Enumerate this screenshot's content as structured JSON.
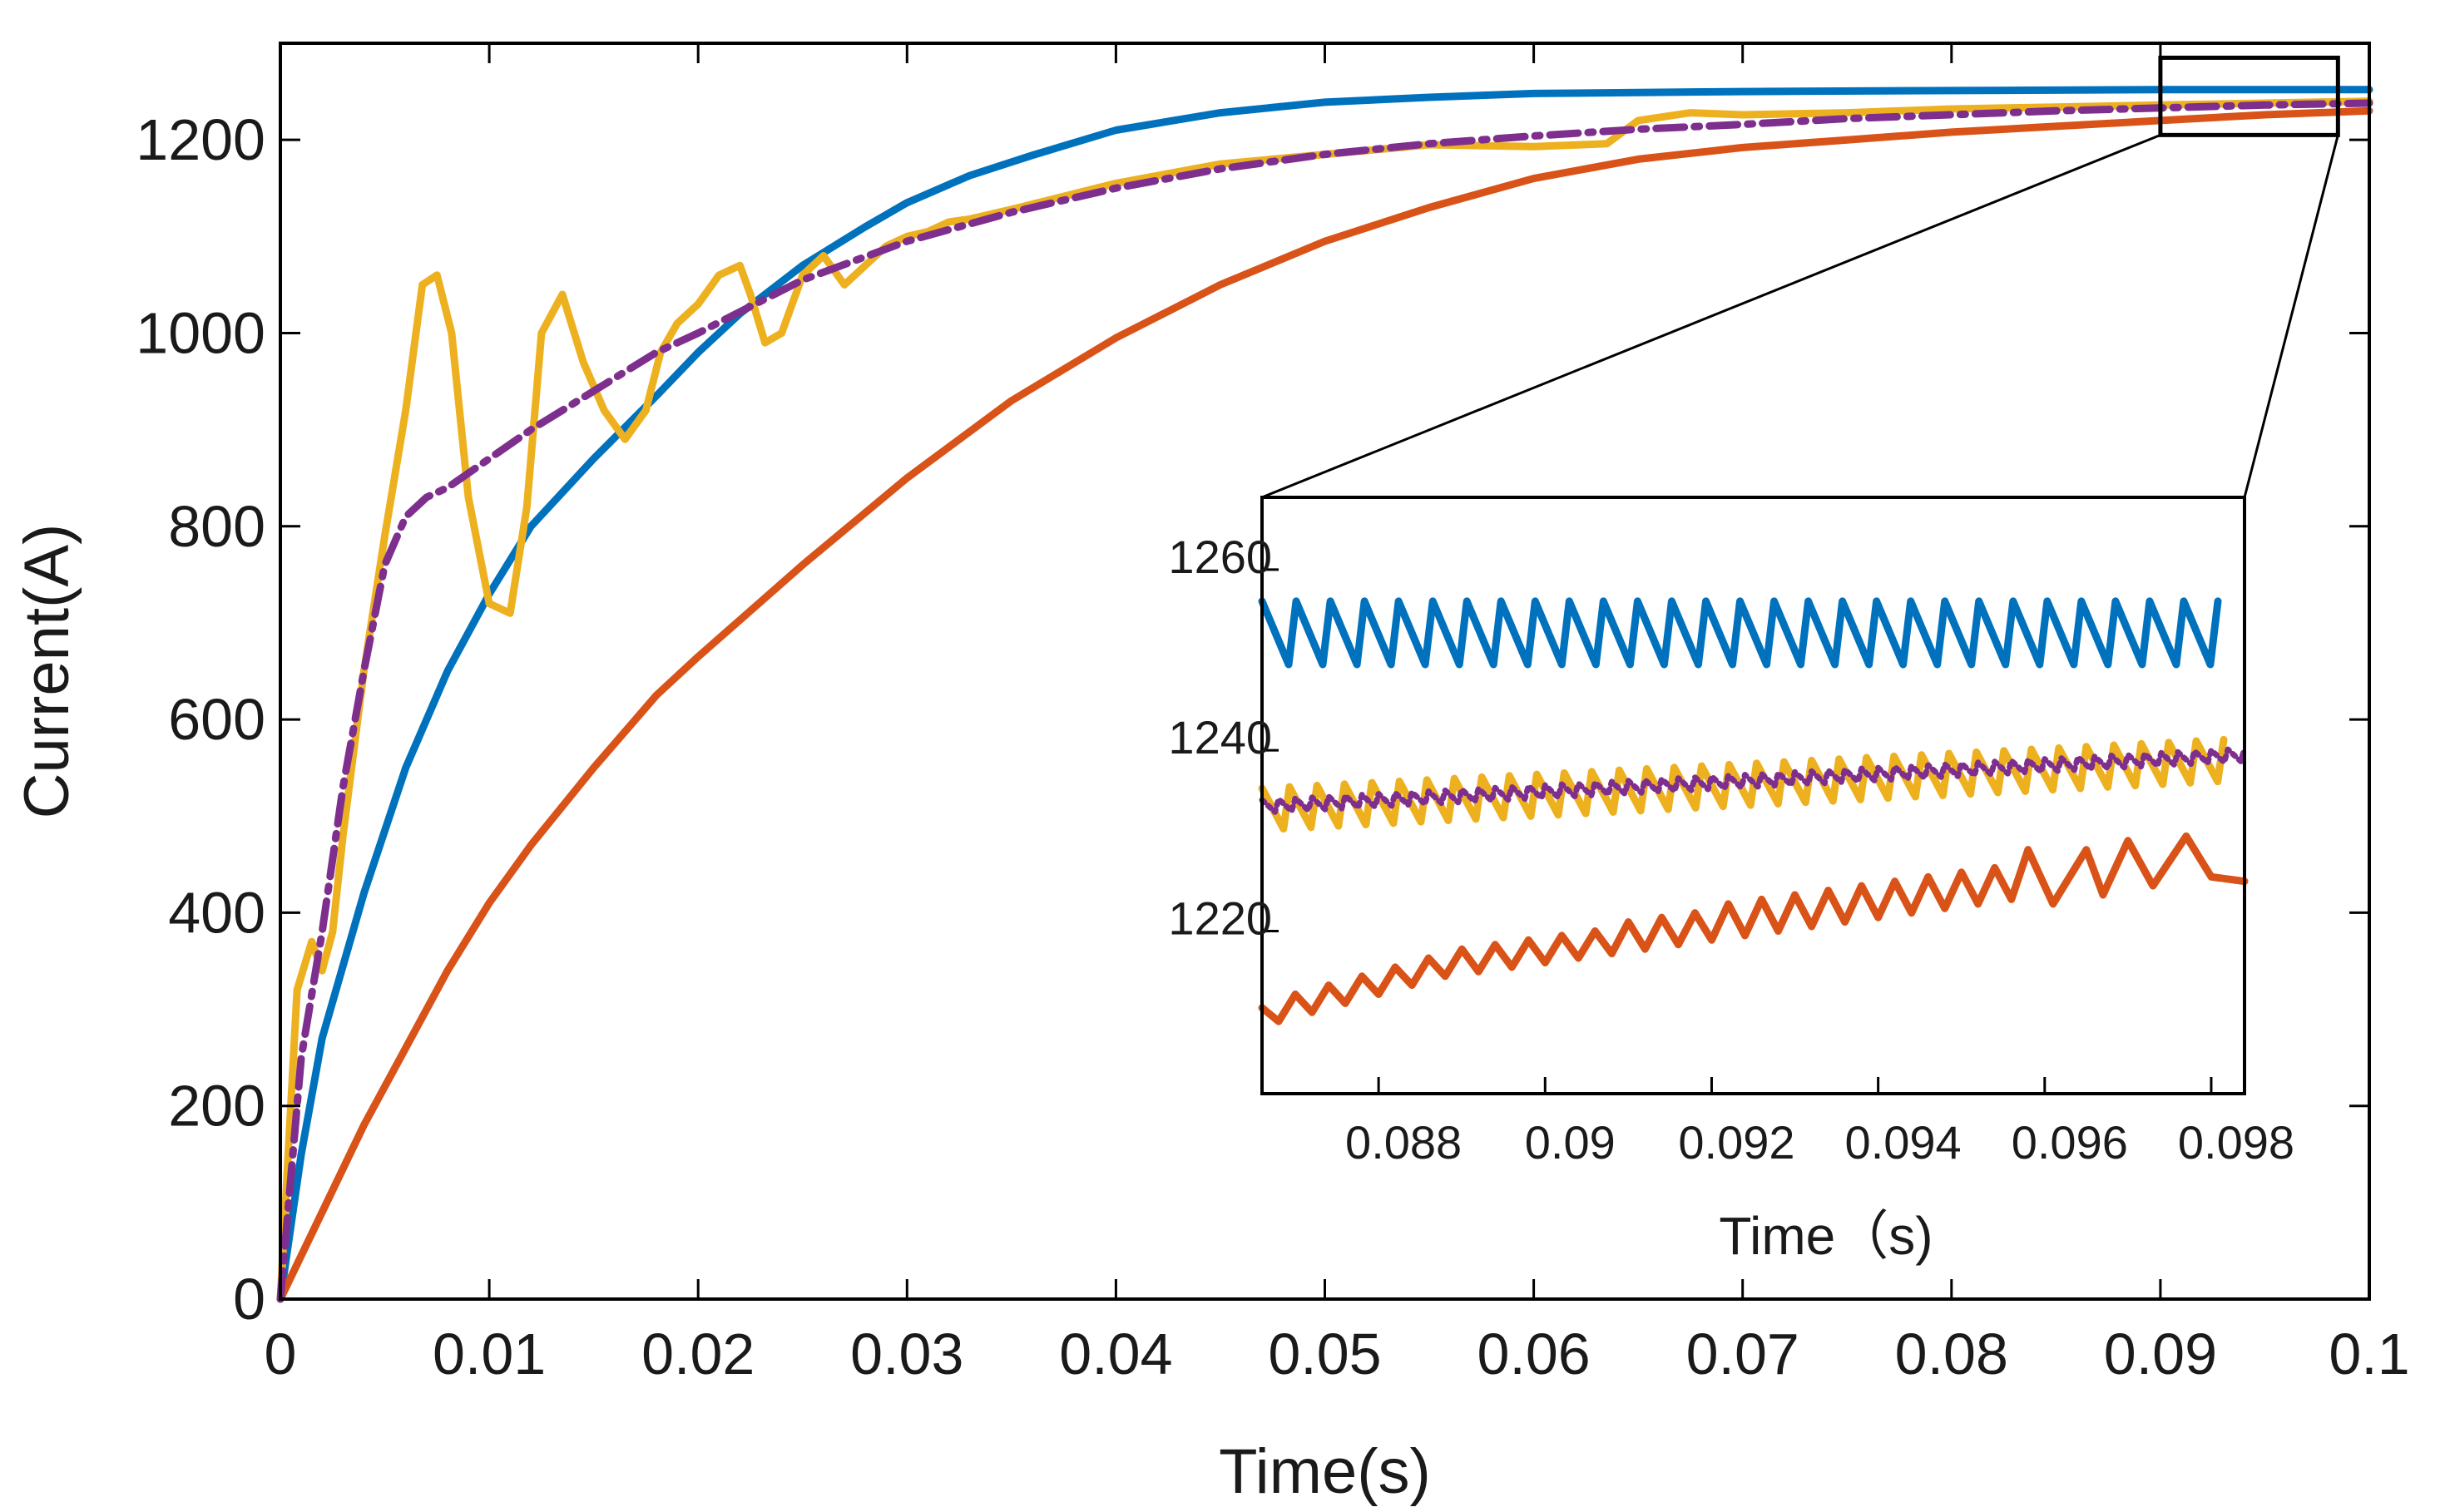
{
  "colors": {
    "series_blue": "#0072BD",
    "series_orange": "#D95319",
    "series_yellow": "#EDB120",
    "series_purple": "#7E2F8E",
    "axis": "#000000"
  },
  "chart_data": [
    {
      "id": "main",
      "type": "line",
      "xlabel": "Time(s)",
      "ylabel": "Current(A)",
      "xlim": [
        0,
        0.1
      ],
      "ylim": [
        0,
        1300
      ],
      "xticks": [
        0,
        0.01,
        0.02,
        0.03,
        0.04,
        0.05,
        0.06,
        0.07,
        0.08,
        0.09,
        0.1
      ],
      "xtick_labels": [
        "0",
        "0.01",
        "0.02",
        "0.03",
        "0.04",
        "0.05",
        "0.06",
        "0.07",
        "0.08",
        "0.09",
        "0.1"
      ],
      "yticks": [
        0,
        200,
        400,
        600,
        800,
        1000,
        1200
      ],
      "ytick_labels": [
        "0",
        "200",
        "400",
        "600",
        "800",
        "1000",
        "1200"
      ],
      "grid": false,
      "zoom_box": {
        "xlim": [
          0.09,
          0.0985
        ],
        "ylim": [
          1205,
          1285
        ]
      },
      "series": [
        {
          "name": "blue",
          "color": "#0072BD",
          "style": "solid",
          "x": [
            0,
            0.001,
            0.002,
            0.004,
            0.006,
            0.008,
            0.01,
            0.012,
            0.015,
            0.018,
            0.02,
            0.022,
            0.025,
            0.028,
            0.03,
            0.033,
            0.036,
            0.04,
            0.045,
            0.05,
            0.055,
            0.06,
            0.07,
            0.08,
            0.09,
            0.1
          ],
          "values": [
            0,
            150,
            270,
            420,
            550,
            650,
            730,
            800,
            870,
            935,
            980,
            1020,
            1070,
            1110,
            1135,
            1163,
            1184,
            1210,
            1228,
            1239,
            1244,
            1248,
            1250,
            1251,
            1252,
            1252
          ]
        },
        {
          "name": "orange",
          "color": "#D95319",
          "style": "solid",
          "x": [
            0,
            0.002,
            0.004,
            0.006,
            0.008,
            0.01,
            0.012,
            0.015,
            0.018,
            0.02,
            0.025,
            0.03,
            0.035,
            0.04,
            0.045,
            0.05,
            0.055,
            0.06,
            0.065,
            0.07,
            0.075,
            0.08,
            0.085,
            0.09,
            0.095,
            0.1
          ],
          "values": [
            0,
            90,
            180,
            260,
            340,
            410,
            470,
            550,
            625,
            665,
            760,
            850,
            930,
            995,
            1050,
            1095,
            1130,
            1160,
            1180,
            1192,
            1200,
            1208,
            1214,
            1220,
            1226,
            1230
          ]
        },
        {
          "name": "yellow",
          "color": "#EDB120",
          "style": "solid",
          "x": [
            0,
            0.0008,
            0.0015,
            0.002,
            0.0025,
            0.003,
            0.004,
            0.005,
            0.006,
            0.0068,
            0.0075,
            0.0082,
            0.009,
            0.01,
            0.011,
            0.0118,
            0.0125,
            0.0135,
            0.0145,
            0.0155,
            0.0165,
            0.0175,
            0.0182,
            0.019,
            0.02,
            0.021,
            0.022,
            0.0225,
            0.0232,
            0.024,
            0.025,
            0.026,
            0.027,
            0.028,
            0.029,
            0.03,
            0.031,
            0.032,
            0.033,
            0.035,
            0.04,
            0.045,
            0.05,
            0.055,
            0.06,
            0.0635,
            0.065,
            0.0675,
            0.07,
            0.075,
            0.08,
            0.085,
            0.09,
            0.095,
            0.1
          ],
          "values": [
            0,
            320,
            370,
            340,
            380,
            480,
            650,
            790,
            920,
            1050,
            1060,
            1000,
            830,
            720,
            710,
            820,
            1000,
            1040,
            970,
            920,
            890,
            920,
            980,
            1010,
            1030,
            1060,
            1070,
            1040,
            990,
            1000,
            1060,
            1080,
            1050,
            1070,
            1090,
            1100,
            1105,
            1115,
            1118,
            1128,
            1155,
            1175,
            1185,
            1195,
            1193,
            1196,
            1220,
            1228,
            1226,
            1228,
            1232,
            1234,
            1236,
            1238,
            1240
          ]
        },
        {
          "name": "purple",
          "color": "#7E2F8E",
          "style": "dashdot",
          "x": [
            0,
            0.001,
            0.002,
            0.003,
            0.004,
            0.005,
            0.006,
            0.007,
            0.008,
            0.01,
            0.012,
            0.015,
            0.018,
            0.02,
            0.025,
            0.03,
            0.035,
            0.04,
            0.045,
            0.05,
            0.055,
            0.06,
            0.065,
            0.07,
            0.075,
            0.08,
            0.085,
            0.09,
            0.095,
            0.1
          ],
          "values": [
            0,
            250,
            380,
            530,
            650,
            760,
            810,
            830,
            840,
            870,
            900,
            940,
            980,
            1000,
            1055,
            1095,
            1125,
            1150,
            1170,
            1185,
            1196,
            1204,
            1211,
            1216,
            1222,
            1226,
            1230,
            1233,
            1236,
            1238
          ]
        }
      ]
    },
    {
      "id": "inset",
      "type": "line",
      "xlabel": "Time（s)",
      "xlim": [
        0.0866,
        0.0984
      ],
      "ylim": [
        1202,
        1268
      ],
      "xticks": [
        0.088,
        0.09,
        0.092,
        0.094,
        0.096,
        0.098
      ],
      "xtick_labels": [
        "0.088",
        "0.09",
        "0.092",
        "0.094",
        "0.096",
        "0.098"
      ],
      "yticks": [
        1220,
        1240,
        1260
      ],
      "ytick_labels": [
        "1220",
        "1240",
        "1260"
      ],
      "grid": false,
      "series": [
        {
          "name": "blue",
          "color": "#0072BD",
          "style": "sawtooth",
          "trend": [
            1253,
            1253
          ],
          "amplitude": 3.5,
          "period": 0.00041
        },
        {
          "name": "yellow",
          "color": "#EDB120",
          "style": "sawtooth",
          "trend": [
            1233.5,
            1239
          ],
          "amplitude": 2.3,
          "period": 0.00033
        },
        {
          "name": "purple",
          "color": "#7E2F8E",
          "style": "dotted",
          "trend": [
            1233.8,
            1239.5
          ],
          "amplitude": 0.7,
          "period": 0.0002
        },
        {
          "name": "orange",
          "color": "#D95319",
          "style": "solid",
          "x": [
            0.0866,
            0.0868,
            0.087,
            0.0872,
            0.0874,
            0.0876,
            0.0878,
            0.088,
            0.0882,
            0.0884,
            0.0886,
            0.0888,
            0.089,
            0.0892,
            0.0894,
            0.0896,
            0.0898,
            0.09,
            0.0902,
            0.0904,
            0.0906,
            0.0908,
            0.091,
            0.0912,
            0.0914,
            0.0916,
            0.0918,
            0.092,
            0.0922,
            0.0924,
            0.0926,
            0.0928,
            0.093,
            0.0932,
            0.0934,
            0.0936,
            0.0938,
            0.094,
            0.0942,
            0.0944,
            0.0946,
            0.0948,
            0.095,
            0.0952,
            0.0954,
            0.0956,
            0.0958,
            0.0961,
            0.0965,
            0.0967,
            0.097,
            0.0973,
            0.0977,
            0.098,
            0.0984
          ],
          "values": [
            1211.5,
            1210.0,
            1213.0,
            1211.0,
            1214.0,
            1212.0,
            1215.0,
            1213.0,
            1216.0,
            1214.0,
            1217.0,
            1215.0,
            1218.0,
            1215.5,
            1218.5,
            1216.0,
            1219.0,
            1216.5,
            1219.5,
            1217.0,
            1220.0,
            1217.5,
            1221.0,
            1218.0,
            1221.5,
            1218.5,
            1222.0,
            1219.0,
            1223.0,
            1219.5,
            1223.5,
            1220.0,
            1224.0,
            1220.5,
            1224.5,
            1221.0,
            1225.0,
            1221.5,
            1225.5,
            1222.0,
            1226.0,
            1222.5,
            1226.5,
            1223.0,
            1227.0,
            1223.5,
            1229.0,
            1223.0,
            1229.0,
            1224.0,
            1230.0,
            1225.0,
            1230.5,
            1226.0,
            1225.5
          ]
        }
      ]
    }
  ]
}
